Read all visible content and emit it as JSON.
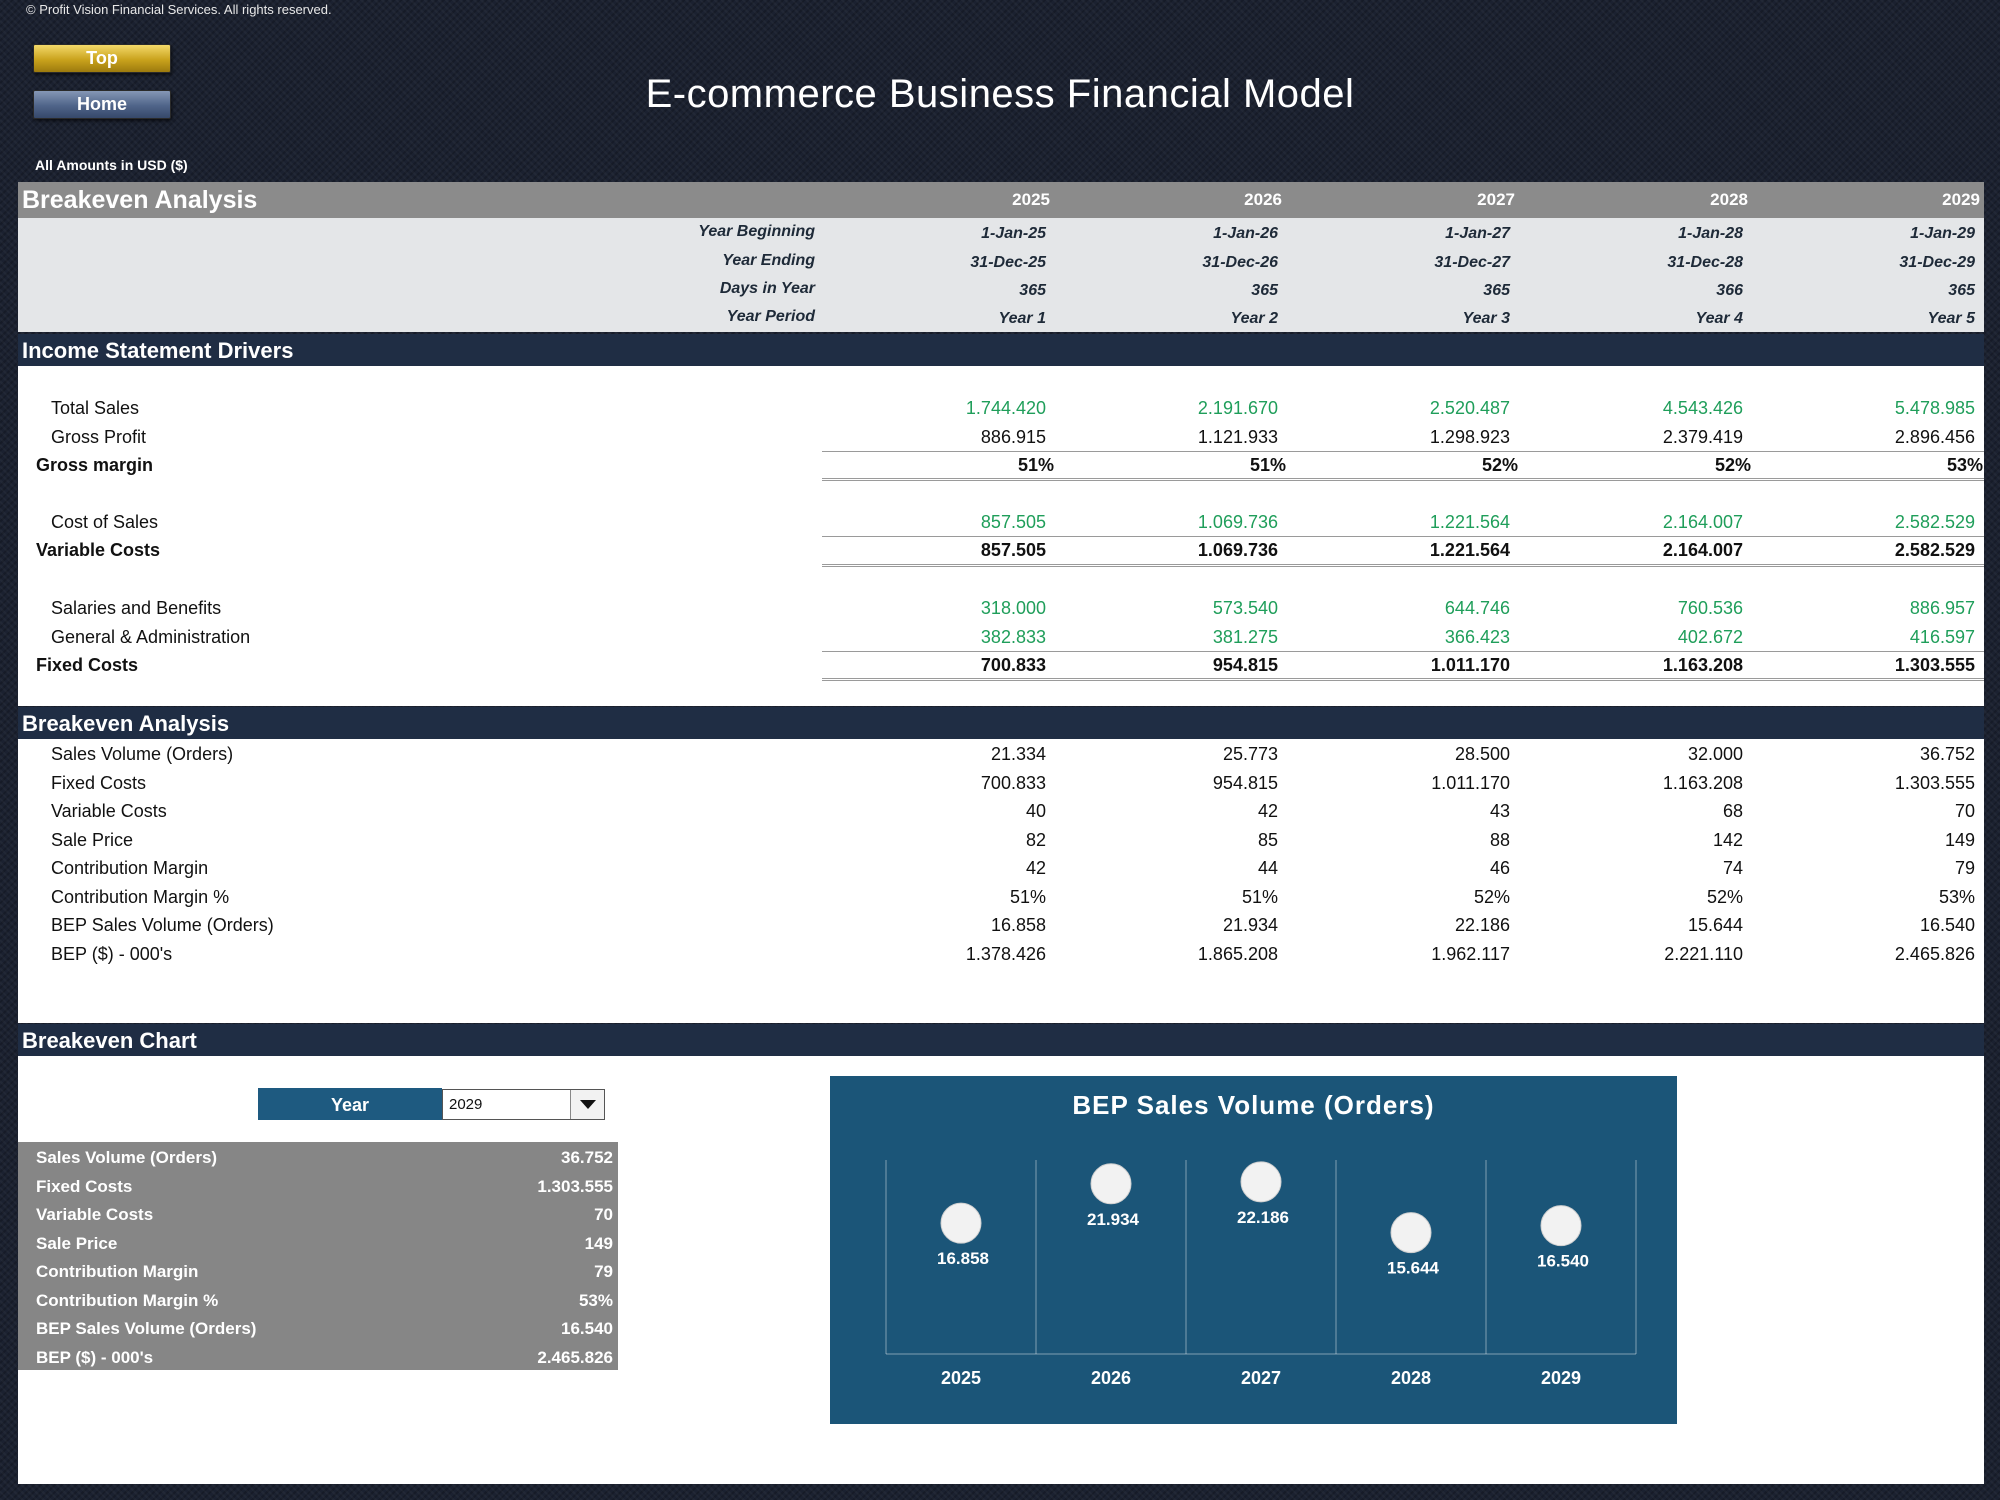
{
  "copyright": "© Profit Vision Financial Services. All rights reserved.",
  "nav": {
    "top_label": "Top",
    "home_label": "Home"
  },
  "title": "E-commerce Business Financial Model",
  "currency_note": "All Amounts in  USD ($)",
  "header": {
    "title": "Breakeven Analysis",
    "years": [
      "2025",
      "2026",
      "2027",
      "2028",
      "2029"
    ],
    "info_rows": [
      {
        "label": "Year Beginning",
        "values": [
          "1-Jan-25",
          "1-Jan-26",
          "1-Jan-27",
          "1-Jan-28",
          "1-Jan-29"
        ]
      },
      {
        "label": "Year Ending",
        "values": [
          "31-Dec-25",
          "31-Dec-26",
          "31-Dec-27",
          "31-Dec-28",
          "31-Dec-29"
        ]
      },
      {
        "label": "Days in Year",
        "values": [
          "365",
          "365",
          "365",
          "366",
          "365"
        ]
      },
      {
        "label": "Year Period",
        "values": [
          "Year 1",
          "Year 2",
          "Year 3",
          "Year 4",
          "Year 5"
        ]
      }
    ]
  },
  "income": {
    "title": "Income Statement Drivers",
    "total_sales": {
      "label": "Total Sales",
      "values": [
        "1.744.420",
        "2.191.670",
        "2.520.487",
        "4.543.426",
        "5.478.985"
      ]
    },
    "gross_profit": {
      "label": "Gross Profit",
      "values": [
        "886.915",
        "1.121.933",
        "1.298.923",
        "2.379.419",
        "2.896.456"
      ]
    },
    "gross_margin": {
      "label": "Gross margin",
      "values": [
        "51%",
        "51%",
        "52%",
        "52%",
        "53%"
      ]
    },
    "cost_of_sales": {
      "label": "Cost of Sales",
      "values": [
        "857.505",
        "1.069.736",
        "1.221.564",
        "2.164.007",
        "2.582.529"
      ]
    },
    "variable_costs": {
      "label": "Variable Costs",
      "values": [
        "857.505",
        "1.069.736",
        "1.221.564",
        "2.164.007",
        "2.582.529"
      ]
    },
    "salaries": {
      "label": "Salaries and Benefits",
      "values": [
        "318.000",
        "573.540",
        "644.746",
        "760.536",
        "886.957"
      ]
    },
    "gna": {
      "label": "General & Administration",
      "values": [
        "382.833",
        "381.275",
        "366.423",
        "402.672",
        "416.597"
      ]
    },
    "fixed_costs": {
      "label": "Fixed Costs",
      "values": [
        "700.833",
        "954.815",
        "1.011.170",
        "1.163.208",
        "1.303.555"
      ]
    }
  },
  "breakeven": {
    "title": "Breakeven Analysis",
    "rows": [
      {
        "label": "Sales Volume (Orders)",
        "values": [
          "21.334",
          "25.773",
          "28.500",
          "32.000",
          "36.752"
        ]
      },
      {
        "label": "Fixed Costs",
        "values": [
          "700.833",
          "954.815",
          "1.011.170",
          "1.163.208",
          "1.303.555"
        ]
      },
      {
        "label": "Variable Costs",
        "values": [
          "40",
          "42",
          "43",
          "68",
          "70"
        ]
      },
      {
        "label": "Sale Price",
        "values": [
          "82",
          "85",
          "88",
          "142",
          "149"
        ]
      },
      {
        "label": "Contribution Margin",
        "values": [
          "42",
          "44",
          "46",
          "74",
          "79"
        ]
      },
      {
        "label": "Contribution Margin %",
        "values": [
          "51%",
          "51%",
          "52%",
          "52%",
          "53%"
        ]
      },
      {
        "label": "BEP Sales Volume (Orders)",
        "values": [
          "16.858",
          "21.934",
          "22.186",
          "15.644",
          "16.540"
        ]
      },
      {
        "label": "BEP ($) - 000's",
        "values": [
          "1.378.426",
          "1.865.208",
          "1.962.117",
          "2.221.110",
          "2.465.826"
        ]
      }
    ]
  },
  "chart_section": {
    "title": "Breakeven Chart",
    "year_label": "Year",
    "selected_year": "2029",
    "summary": [
      {
        "label": "Sales Volume (Orders)",
        "value": "36.752"
      },
      {
        "label": "Fixed Costs",
        "value": "1.303.555"
      },
      {
        "label": "Variable Costs",
        "value": "70"
      },
      {
        "label": "Sale Price",
        "value": "149"
      },
      {
        "label": "Contribution Margin",
        "value": "79"
      },
      {
        "label": "Contribution Margin %",
        "value": "53%"
      },
      {
        "label": "BEP Sales Volume (Orders)",
        "value": "16.540"
      },
      {
        "label": "BEP ($) - 000's",
        "value": "2.465.826"
      }
    ]
  },
  "chart_data": {
    "type": "scatter",
    "title": "BEP Sales Volume (Orders)",
    "categories": [
      "2025",
      "2026",
      "2027",
      "2028",
      "2029"
    ],
    "values": [
      16858,
      21934,
      22186,
      15644,
      16540
    ],
    "labels": [
      "16.858",
      "21.934",
      "22.186",
      "15.644",
      "16.540"
    ],
    "ylim": [
      0,
      25000
    ],
    "background_color": "#1b5578",
    "marker_color": "#f2f2f2"
  }
}
